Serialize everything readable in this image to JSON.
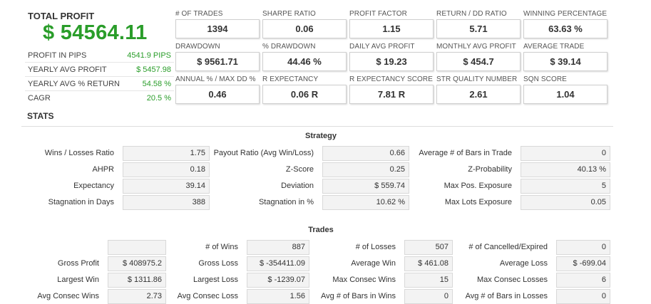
{
  "total_profit": {
    "title": "TOTAL PROFIT",
    "value": "$ 54564.11",
    "rows": [
      {
        "label": "PROFIT IN PIPS",
        "value": "4541.9 PIPS"
      },
      {
        "label": "YEARLY AVG PROFIT",
        "value": "$ 5457.98"
      },
      {
        "label": "YEARLY AVG % RETURN",
        "value": "54.58 %"
      },
      {
        "label": "CAGR",
        "value": "20.5 %"
      }
    ]
  },
  "cards": [
    {
      "label": "# OF TRADES",
      "value": "1394"
    },
    {
      "label": "SHARPE RATIO",
      "value": "0.06"
    },
    {
      "label": "PROFIT FACTOR",
      "value": "1.15"
    },
    {
      "label": "RETURN / DD RATIO",
      "value": "5.71"
    },
    {
      "label": "WINNING PERCENTAGE",
      "value": "63.63 %"
    },
    {
      "label": "DRAWDOWN",
      "value": "$ 9561.71"
    },
    {
      "label": "% DRAWDOWN",
      "value": "44.46 %"
    },
    {
      "label": "DAILY AVG PROFIT",
      "value": "$ 19.23"
    },
    {
      "label": "MONTHLY AVG PROFIT",
      "value": "$ 454.7"
    },
    {
      "label": "AVERAGE TRADE",
      "value": "$ 39.14"
    },
    {
      "label": "ANNUAL % / MAX DD %",
      "value": "0.46"
    },
    {
      "label": "R EXPECTANCY",
      "value": "0.06 R"
    },
    {
      "label": "R EXPECTANCY SCORE",
      "value": "7.81 R"
    },
    {
      "label": "STR QUALITY NUMBER",
      "value": "2.61"
    },
    {
      "label": "SQN SCORE",
      "value": "1.04"
    }
  ],
  "stats": {
    "title": "STATS",
    "strategy": {
      "title": "Strategy",
      "rows": [
        [
          {
            "label": "Wins / Losses Ratio",
            "value": "1.75"
          },
          {
            "label": "Payout Ratio (Avg Win/Loss)",
            "value": "0.66"
          },
          {
            "label": "Average # of Bars in Trade",
            "value": "0"
          }
        ],
        [
          {
            "label": "AHPR",
            "value": "0.18"
          },
          {
            "label": "Z-Score",
            "value": "0.25"
          },
          {
            "label": "Z-Probability",
            "value": "40.13 %"
          }
        ],
        [
          {
            "label": "Expectancy",
            "value": "39.14"
          },
          {
            "label": "Deviation",
            "value": "$ 559.74"
          },
          {
            "label": "Max Pos. Exposure",
            "value": "5"
          }
        ],
        [
          {
            "label": "Stagnation in Days",
            "value": "388"
          },
          {
            "label": "Stagnation in %",
            "value": "10.62 %"
          },
          {
            "label": "Max Lots Exposure",
            "value": "0.05"
          }
        ]
      ]
    },
    "trades": {
      "title": "Trades",
      "rows": [
        [
          {
            "label": "",
            "value": ""
          },
          {
            "label": "# of Wins",
            "value": "887"
          },
          {
            "label": "# of Losses",
            "value": "507"
          },
          {
            "label": "# of Cancelled/Expired",
            "value": "0"
          }
        ],
        [
          {
            "label": "Gross Profit",
            "value": "$ 408975.2"
          },
          {
            "label": "Gross Loss",
            "value": "$ -354411.09"
          },
          {
            "label": "Average Win",
            "value": "$ 461.08"
          },
          {
            "label": "Average Loss",
            "value": "$ -699.04"
          }
        ],
        [
          {
            "label": "Largest Win",
            "value": "$ 1311.86"
          },
          {
            "label": "Largest Loss",
            "value": "$ -1239.07"
          },
          {
            "label": "Max Consec Wins",
            "value": "15"
          },
          {
            "label": "Max Consec Losses",
            "value": "6"
          }
        ],
        [
          {
            "label": "Avg Consec Wins",
            "value": "2.73"
          },
          {
            "label": "Avg Consec Loss",
            "value": "1.56"
          },
          {
            "label": "Avg # of Bars in Wins",
            "value": "0"
          },
          {
            "label": "Avg # of Bars in Losses",
            "value": "0"
          }
        ]
      ]
    }
  }
}
